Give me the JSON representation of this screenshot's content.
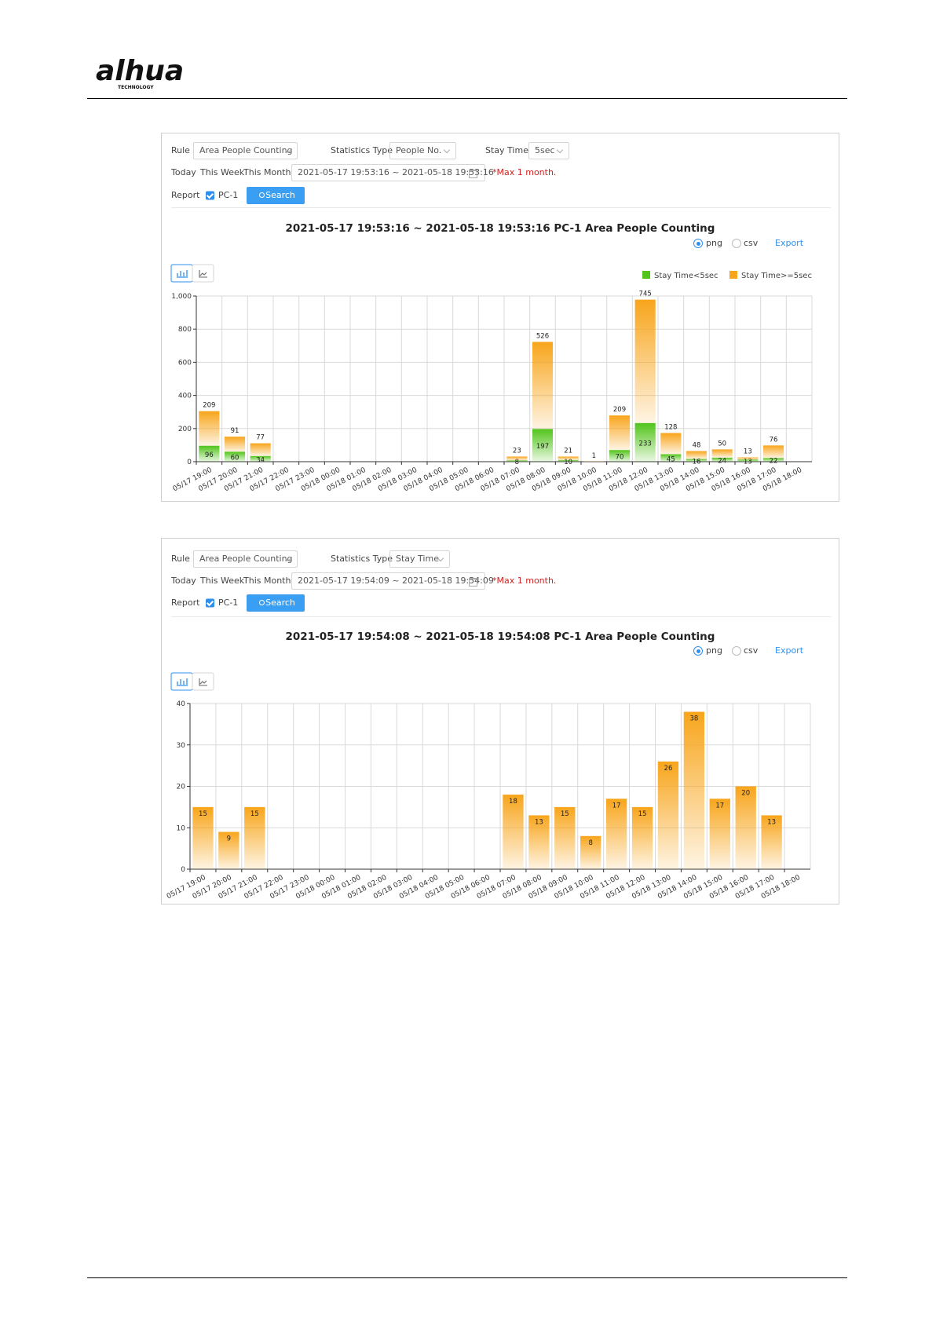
{
  "header": {
    "logo": "alhua",
    "logo_tagline": "TECHNOLOGY"
  },
  "panels": [
    {
      "rule_label": "Rule",
      "rule": "Area People Counting",
      "stats_label": "Statistics Type",
      "stats": "People No.",
      "stay_label": "Stay Time",
      "stay": "5sec",
      "today": "Today",
      "week": "This Week",
      "month": "This Month",
      "range": "2021-05-17 19:53:16 ~ 2021-05-18 19:53:16",
      "max_note": "*Max 1 month.",
      "report_label": "Report",
      "report_item": "PC-1",
      "search": "Search",
      "png": "png",
      "csv": "csv",
      "export": "Export"
    },
    {
      "rule_label": "Rule",
      "rule": "Area People Counting",
      "stats_label": "Statistics Type",
      "stats": "Stay Time",
      "today": "Today",
      "week": "This Week",
      "month": "This Month",
      "range": "2021-05-17 19:54:09 ~ 2021-05-18 19:54:09",
      "max_note": "*Max 1 month.",
      "report_label": "Report",
      "report_item": "PC-1",
      "search": "Search",
      "png": "png",
      "csv": "csv",
      "export": "Export"
    }
  ],
  "chart_data": [
    {
      "type": "bar",
      "stacked": true,
      "grid": true,
      "legend": "top-right",
      "title": "2021-05-17 19:53:16 ~ 2021-05-18 19:53:16  PC-1  Area People Counting",
      "categories": [
        "05/17 19:00",
        "05/17 20:00",
        "05/17 21:00",
        "05/17 22:00",
        "05/17 23:00",
        "05/18 00:00",
        "05/18 01:00",
        "05/18 02:00",
        "05/18 03:00",
        "05/18 04:00",
        "05/18 05:00",
        "05/18 06:00",
        "05/18 07:00",
        "05/18 08:00",
        "05/18 09:00",
        "05/18 10:00",
        "05/18 11:00",
        "05/18 12:00",
        "05/18 13:00",
        "05/18 14:00",
        "05/18 15:00",
        "05/18 16:00",
        "05/18 17:00",
        "05/18 18:00"
      ],
      "series": [
        {
          "name": "Stay Time<5sec",
          "color": "#52c41a",
          "values": [
            96,
            60,
            34,
            null,
            null,
            null,
            null,
            null,
            null,
            null,
            null,
            null,
            8,
            197,
            10,
            null,
            70,
            233,
            45,
            16,
            24,
            13,
            22,
            null
          ]
        },
        {
          "name": "Stay Time>=5sec",
          "color": "#f8a51b",
          "values": [
            209,
            91,
            77,
            null,
            null,
            null,
            null,
            null,
            null,
            null,
            null,
            null,
            23,
            526,
            21,
            1,
            209,
            745,
            128,
            48,
            50,
            13,
            76,
            null
          ]
        }
      ],
      "ylim": [
        0,
        1000
      ],
      "yticks": [
        0,
        200,
        400,
        600,
        800,
        {
          "value": 1000,
          "label": "1,000"
        }
      ]
    },
    {
      "type": "bar",
      "stacked": false,
      "grid": true,
      "title": "2021-05-17 19:54:08 ~ 2021-05-18 19:54:08  PC-1  Area People Counting",
      "categories": [
        "05/17 19:00",
        "05/17 20:00",
        "05/17 21:00",
        "05/17 22:00",
        "05/17 23:00",
        "05/18 00:00",
        "05/18 01:00",
        "05/18 02:00",
        "05/18 03:00",
        "05/18 04:00",
        "05/18 05:00",
        "05/18 06:00",
        "05/18 07:00",
        "05/18 08:00",
        "05/18 09:00",
        "05/18 10:00",
        "05/18 11:00",
        "05/18 12:00",
        "05/18 13:00",
        "05/18 14:00",
        "05/18 15:00",
        "05/18 16:00",
        "05/18 17:00",
        "05/18 18:00"
      ],
      "series": [
        {
          "color": "#f8a51b",
          "values": [
            15,
            9,
            15,
            null,
            null,
            null,
            null,
            null,
            null,
            null,
            null,
            null,
            18,
            13,
            15,
            8,
            17,
            15,
            26,
            38,
            17,
            20,
            13,
            null
          ]
        }
      ],
      "ylim": [
        0,
        40
      ],
      "yticks": [
        0,
        10,
        20,
        30,
        40
      ]
    }
  ]
}
